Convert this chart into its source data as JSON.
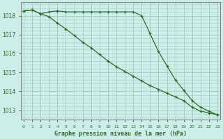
{
  "title": "Graphe pression niveau de la mer (hPa)",
  "background_color": "#cceee8",
  "grid_color": "#aaccc8",
  "line_color": "#2d6e2d",
  "x": [
    0,
    1,
    2,
    3,
    4,
    5,
    6,
    7,
    8,
    9,
    10,
    11,
    12,
    13,
    14,
    15,
    16,
    17,
    18,
    19,
    20,
    21,
    22,
    23
  ],
  "line1": [
    1018.25,
    1018.3,
    1018.1,
    1018.2,
    1018.25,
    1018.2,
    1018.2,
    1018.2,
    1018.2,
    1018.2,
    1018.2,
    1018.2,
    1018.2,
    1018.2,
    1018.0,
    1017.05,
    1016.1,
    1015.35,
    1014.6,
    1014.05,
    1013.5,
    1013.15,
    1012.95,
    1012.75
  ],
  "line2": [
    1018.25,
    1018.3,
    1018.1,
    1017.95,
    1017.6,
    1017.3,
    1016.95,
    1016.6,
    1016.3,
    1015.95,
    1015.6,
    1015.3,
    1015.05,
    1014.8,
    1014.55,
    1014.3,
    1014.1,
    1013.9,
    1013.7,
    1013.5,
    1013.15,
    1012.95,
    1012.85,
    1012.75
  ],
  "ylim": [
    1012.5,
    1018.7
  ],
  "yticks": [
    1013,
    1014,
    1015,
    1016,
    1017,
    1018
  ],
  "xlim": [
    -0.3,
    23.3
  ],
  "xticks": [
    0,
    1,
    2,
    3,
    4,
    5,
    6,
    7,
    8,
    9,
    10,
    11,
    12,
    13,
    14,
    15,
    16,
    17,
    18,
    19,
    20,
    21,
    22,
    23
  ],
  "figsize": [
    3.2,
    2.0
  ],
  "dpi": 100
}
